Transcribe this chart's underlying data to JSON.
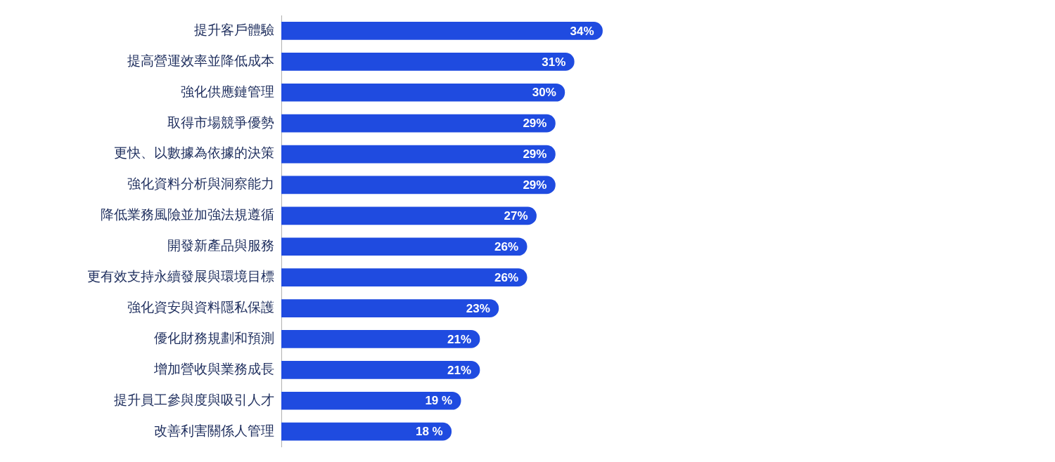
{
  "chart_data": {
    "type": "bar",
    "orientation": "horizontal",
    "categories": [
      "提升客戶體驗",
      "提高營運效率並降低成本",
      "強化供應鏈管理",
      "取得市場競爭優勢",
      "更快、以數據為依據的決策",
      "強化資料分析與洞察能力",
      "降低業務風險並加強法規遵循",
      "開發新產品與服務",
      "更有效支持永續發展與環境目標",
      "強化資安與資料隱私保護",
      "優化財務規劃和預測",
      "增加營收與業務成長",
      "提升員工參與度與吸引人才",
      "改善利害關係人管理"
    ],
    "values": [
      34,
      31,
      30,
      29,
      29,
      29,
      27,
      26,
      26,
      23,
      21,
      21,
      19,
      18
    ],
    "value_labels": [
      "34%",
      "31%",
      "30%",
      "29%",
      "29%",
      "29%",
      "27%",
      "26%",
      "26%",
      "23%",
      "21%",
      "21%",
      "19 %",
      "18 %"
    ],
    "color": "#1f4be0",
    "tick_labels": "y",
    "legend": false
  }
}
